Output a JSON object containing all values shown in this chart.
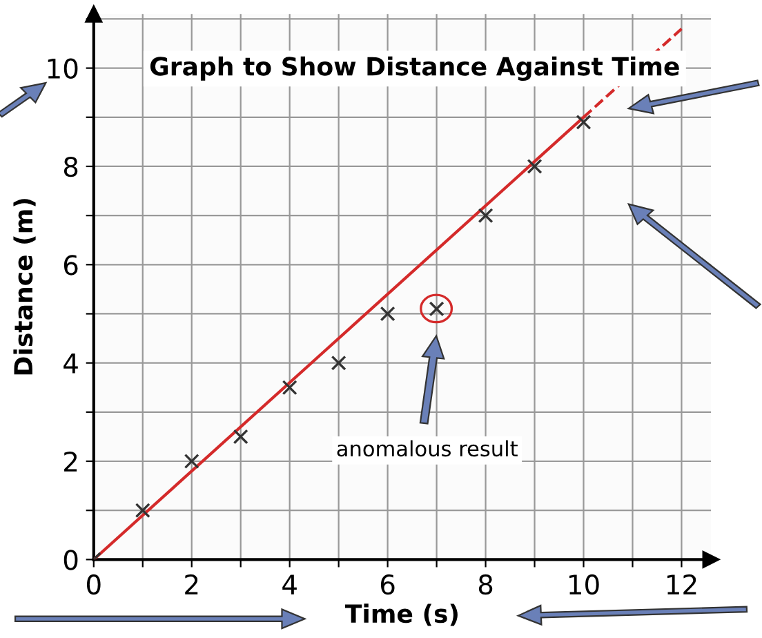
{
  "chart_data": {
    "type": "scatter",
    "title": "Graph to Show Distance Against Time",
    "xlabel": "Time (s)",
    "ylabel": "Distance (m)",
    "x": [
      0,
      1,
      2,
      3,
      4,
      5,
      6,
      7,
      8,
      9,
      10
    ],
    "series": [
      {
        "color": "#333333",
        "marker": "cross",
        "values": [
          0,
          1,
          2,
          2.5,
          3.5,
          4,
          5,
          5.1,
          7,
          8,
          8.9
        ]
      },
      {
        "type": "line",
        "color": "#d42a2a",
        "line_style": "solid",
        "marker": "none",
        "x": [
          0,
          10
        ],
        "values": [
          0,
          9
        ]
      },
      {
        "type": "line",
        "color": "#d42a2a",
        "line_style": "dashed",
        "marker": "none",
        "x": [
          10,
          12
        ],
        "values": [
          9,
          10.8
        ]
      }
    ],
    "annotations": [
      "anomalous result"
    ],
    "xlim": [
      0,
      12.6
    ],
    "ylim": [
      0,
      11.1
    ],
    "xticks": [
      0,
      {
        "value": 1,
        "label": null
      },
      2,
      {
        "value": 3,
        "label": null
      },
      4,
      {
        "value": 5,
        "label": null
      },
      6,
      {
        "value": 7,
        "label": null
      },
      8,
      {
        "value": 9,
        "label": null
      },
      10,
      {
        "value": 11,
        "label": null
      },
      12
    ],
    "yticks": [
      0,
      {
        "value": 1,
        "label": null
      },
      2,
      {
        "value": 3,
        "label": null
      },
      4,
      {
        "value": 5,
        "label": null
      },
      6,
      {
        "value": 7,
        "label": null
      },
      8,
      {
        "value": 9,
        "label": null
      },
      10,
      {
        "value": 11,
        "label": null
      }
    ],
    "grid": true,
    "legend": false
  }
}
